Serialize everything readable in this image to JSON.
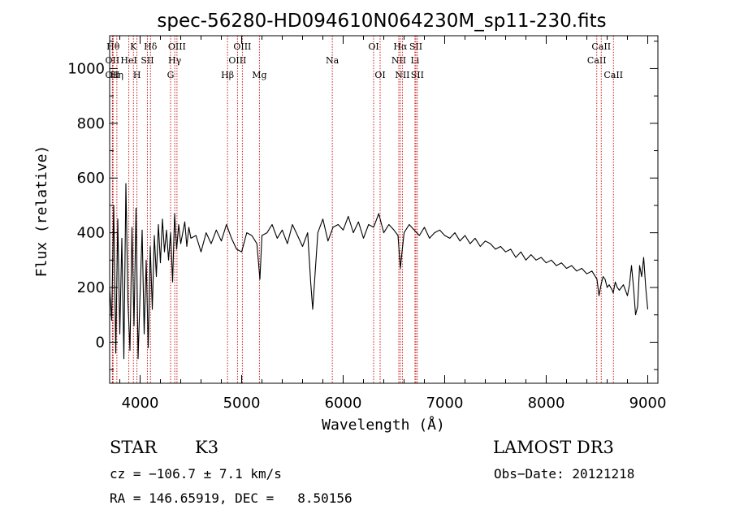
{
  "chart_data": {
    "type": "line",
    "title": "spec-56280-HD094610N064230M_sp11-230.fits",
    "xlabel": "Wavelength (Å)",
    "ylabel": "Flux (relative)",
    "xlim": [
      3700,
      9100
    ],
    "ylim": [
      -150,
      1120
    ],
    "xticks": [
      4000,
      5000,
      6000,
      7000,
      8000,
      9000
    ],
    "yticks": [
      0,
      200,
      400,
      600,
      800,
      1000
    ],
    "grid": false,
    "series": [
      {
        "name": "flux",
        "x": [
          3700,
          3720,
          3740,
          3760,
          3780,
          3800,
          3820,
          3840,
          3860,
          3880,
          3900,
          3920,
          3940,
          3960,
          3980,
          4000,
          4020,
          4040,
          4060,
          4080,
          4100,
          4120,
          4140,
          4160,
          4180,
          4200,
          4220,
          4240,
          4260,
          4280,
          4300,
          4320,
          4340,
          4360,
          4380,
          4400,
          4420,
          4440,
          4460,
          4480,
          4500,
          4550,
          4600,
          4650,
          4700,
          4750,
          4800,
          4850,
          4900,
          4950,
          5000,
          5050,
          5100,
          5150,
          5180,
          5200,
          5250,
          5300,
          5350,
          5400,
          5450,
          5500,
          5550,
          5600,
          5650,
          5680,
          5700,
          5750,
          5800,
          5850,
          5900,
          5950,
          6000,
          6050,
          6100,
          6150,
          6200,
          6250,
          6300,
          6350,
          6400,
          6450,
          6500,
          6540,
          6563,
          6580,
          6600,
          6650,
          6700,
          6750,
          6800,
          6850,
          6900,
          6950,
          7000,
          7050,
          7100,
          7150,
          7200,
          7250,
          7300,
          7350,
          7400,
          7450,
          7500,
          7550,
          7600,
          7650,
          7700,
          7750,
          7800,
          7850,
          7900,
          7950,
          8000,
          8050,
          8100,
          8150,
          8200,
          8250,
          8300,
          8350,
          8400,
          8450,
          8500,
          8520,
          8540,
          8560,
          8580,
          8600,
          8620,
          8650,
          8660,
          8680,
          8700,
          8720,
          8740,
          8760,
          8780,
          8800,
          8820,
          8840,
          8860,
          8880,
          8900,
          8920,
          8940,
          8960,
          8980,
          9000
        ],
        "values": [
          200,
          80,
          500,
          -40,
          450,
          30,
          380,
          -60,
          580,
          150,
          -30,
          420,
          60,
          490,
          -60,
          180,
          410,
          30,
          300,
          -20,
          350,
          120,
          390,
          240,
          430,
          290,
          450,
          330,
          410,
          300,
          400,
          220,
          470,
          340,
          430,
          360,
          400,
          440,
          350,
          420,
          380,
          390,
          330,
          400,
          360,
          410,
          370,
          430,
          380,
          340,
          330,
          400,
          390,
          360,
          230,
          390,
          400,
          430,
          380,
          410,
          360,
          430,
          390,
          350,
          400,
          220,
          120,
          400,
          450,
          370,
          420,
          430,
          410,
          460,
          400,
          440,
          380,
          430,
          420,
          470,
          400,
          430,
          410,
          390,
          270,
          330,
          400,
          430,
          410,
          390,
          420,
          380,
          400,
          410,
          390,
          380,
          400,
          370,
          390,
          360,
          380,
          350,
          370,
          360,
          340,
          350,
          330,
          340,
          310,
          330,
          300,
          320,
          300,
          310,
          290,
          300,
          280,
          290,
          270,
          280,
          260,
          270,
          250,
          260,
          230,
          170,
          210,
          240,
          230,
          200,
          210,
          190,
          180,
          220,
          200,
          190,
          200,
          210,
          190,
          170,
          210,
          280,
          200,
          100,
          130,
          280,
          240,
          310,
          200,
          120
        ]
      }
    ],
    "lines": [
      {
        "wl": 3734,
        "label": "Hθ",
        "row": 0
      },
      {
        "wl": 3727,
        "label": "OII",
        "row": 1
      },
      {
        "wl": 3727,
        "label": "OII",
        "row": 2
      },
      {
        "wl": 3771,
        "label": "Hη",
        "row": 2
      },
      {
        "wl": 3889,
        "label": "HeI",
        "row": 1
      },
      {
        "wl": 3934,
        "label": "K",
        "row": 0
      },
      {
        "wl": 3969,
        "label": "H",
        "row": 2
      },
      {
        "wl": 4072,
        "label": "SII",
        "row": 1
      },
      {
        "wl": 4102,
        "label": "Hδ",
        "row": 0
      },
      {
        "wl": 4300,
        "label": "G",
        "row": 2
      },
      {
        "wl": 4341,
        "label": "Hγ",
        "row": 1
      },
      {
        "wl": 4363,
        "label": "OIII",
        "row": 0
      },
      {
        "wl": 4861,
        "label": "Hβ",
        "row": 2
      },
      {
        "wl": 4959,
        "label": "OIII",
        "row": 1
      },
      {
        "wl": 5007,
        "label": "OIII",
        "row": 0
      },
      {
        "wl": 5175,
        "label": "Mg",
        "row": 2
      },
      {
        "wl": 5893,
        "label": "Na",
        "row": 1
      },
      {
        "wl": 6300,
        "label": "OI",
        "row": 0
      },
      {
        "wl": 6364,
        "label": "OI",
        "row": 2
      },
      {
        "wl": 6548,
        "label": "NII",
        "row": 1
      },
      {
        "wl": 6563,
        "label": "Hα",
        "row": 0
      },
      {
        "wl": 6583,
        "label": "NII",
        "row": 2
      },
      {
        "wl": 6707,
        "label": "Li",
        "row": 1
      },
      {
        "wl": 6716,
        "label": "SII",
        "row": 0
      },
      {
        "wl": 6731,
        "label": "SII",
        "row": 2
      },
      {
        "wl": 8498,
        "label": "CaII",
        "row": 1
      },
      {
        "wl": 8542,
        "label": "CaII",
        "row": 0
      },
      {
        "wl": 8662,
        "label": "CaII",
        "row": 2
      }
    ]
  },
  "info": {
    "object_class": "STAR",
    "subclass": "K3",
    "survey": "LAMOST DR3",
    "cz": "cz = −106.7 ± 7.1 km/s",
    "obs_date": "Obs−Date: 20121218",
    "coords": "RA = 146.65919, DEC =   8.50156"
  },
  "colors": {
    "axis": "#000000",
    "spectrum": "#000000",
    "line_marker": "#c00000"
  }
}
